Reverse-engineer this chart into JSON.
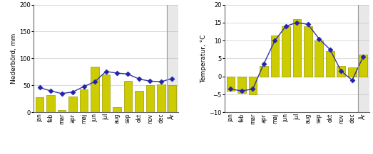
{
  "categories": [
    "jan",
    "feb",
    "mar",
    "apr",
    "maj",
    "jun",
    "jul",
    "aug",
    "sep",
    "okt",
    "nov",
    "dec",
    "År"
  ],
  "precip_bars": [
    28,
    32,
    5,
    30,
    43,
    85,
    70,
    10,
    58,
    40,
    50,
    52,
    50
  ],
  "precip_line": [
    46,
    40,
    35,
    38,
    48,
    57,
    76,
    73,
    71,
    62,
    58,
    57,
    63
  ],
  "temp_bars": [
    -4,
    -4.5,
    -5,
    3,
    11.5,
    14,
    16,
    14,
    10,
    7,
    3,
    2.5,
    6
  ],
  "temp_line": [
    -3.5,
    -4,
    -3.5,
    3.5,
    10,
    14,
    15,
    14.5,
    10.5,
    7.5,
    1.5,
    -1,
    5.5
  ],
  "bar_color": "#cccc00",
  "bar_edge_color": "#999900",
  "line_color": "#3333aa",
  "marker_color": "#2222aa",
  "bg_color": "#ffffff",
  "plot_bg": "#ffffff",
  "ylabel_precip": "Nederbörd, mm",
  "ylabel_temp": "Temperatur, °C",
  "ylim_precip": [
    0,
    200
  ],
  "ylim_temp": [
    -10,
    20
  ],
  "yticks_precip": [
    0,
    50,
    100,
    150,
    200
  ],
  "yticks_temp": [
    -10,
    -5,
    0,
    5,
    10,
    15,
    20
  ],
  "grid_color": "#aaaaaa",
  "grid_alpha": 0.5,
  "ar_bg_color": "#e8e8e8"
}
